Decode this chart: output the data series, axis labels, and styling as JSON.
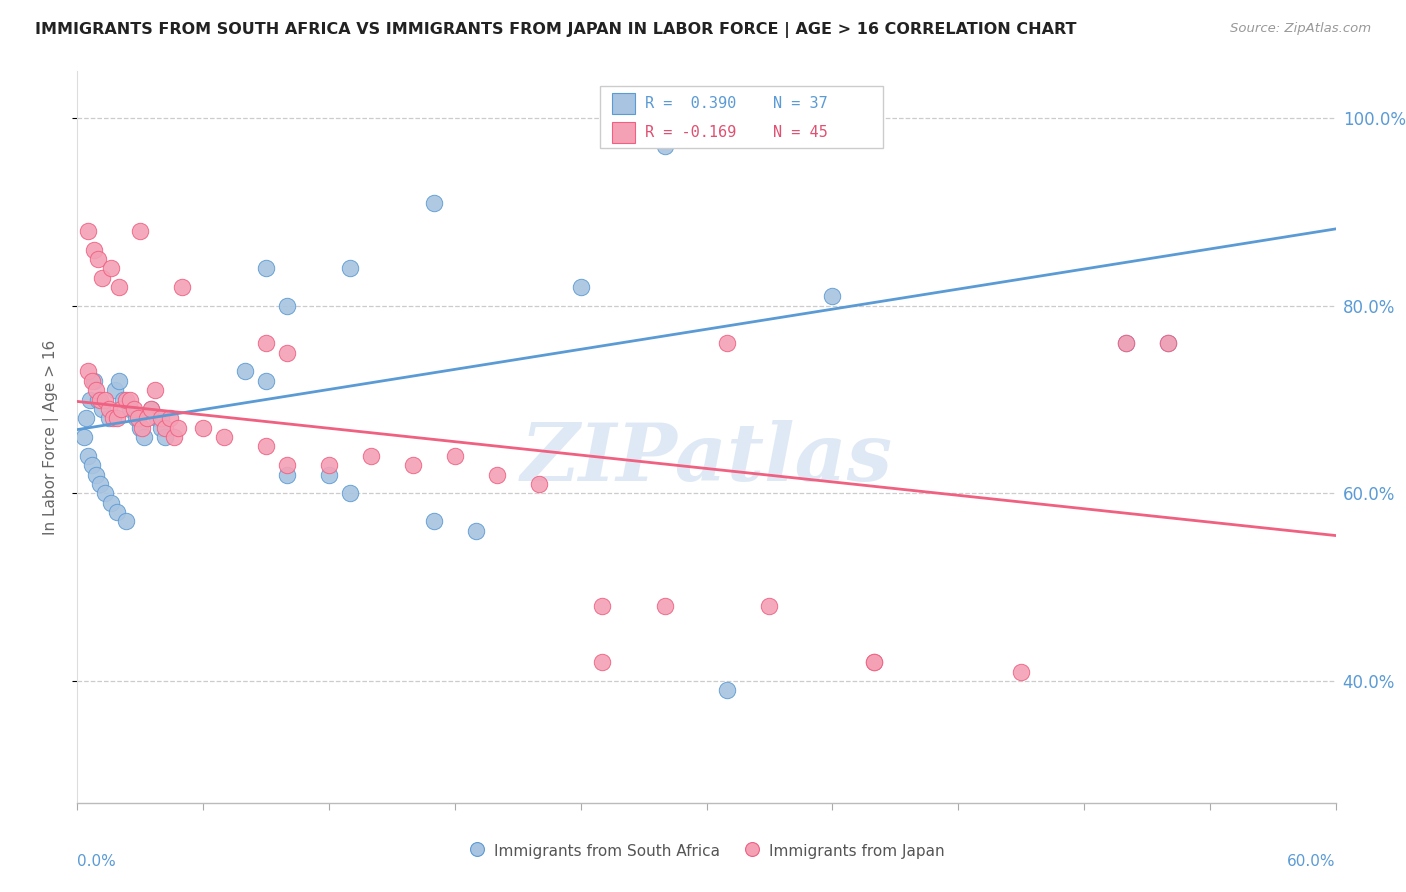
{
  "title": "IMMIGRANTS FROM SOUTH AFRICA VS IMMIGRANTS FROM JAPAN IN LABOR FORCE | AGE > 16 CORRELATION CHART",
  "source": "Source: ZipAtlas.com",
  "ylabel": "In Labor Force | Age > 16",
  "ytick_labels": [
    "100.0%",
    "80.0%",
    "60.0%",
    "40.0%"
  ],
  "ytick_values": [
    1.0,
    0.8,
    0.6,
    0.4
  ],
  "xlim": [
    0.0,
    0.6
  ],
  "ylim": [
    0.27,
    1.05
  ],
  "legend_r1": "R = 0.390",
  "legend_n1": "N = 37",
  "legend_r2": "R = -0.169",
  "legend_n2": "N = 45",
  "color_blue_fill": "#a8c4e0",
  "color_pink_fill": "#f4a0b5",
  "color_blue_edge": "#5b9bd5",
  "color_pink_edge": "#f06080",
  "color_text_blue": "#5b9bd5",
  "color_text_pink": "#e05070",
  "watermark": "ZIPatlas",
  "scatter_blue_x": [
    0.006,
    0.004,
    0.003,
    0.008,
    0.01,
    0.012,
    0.015,
    0.018,
    0.02,
    0.022,
    0.025,
    0.028,
    0.03,
    0.032,
    0.035,
    0.038,
    0.04,
    0.042,
    0.005,
    0.007,
    0.009,
    0.011,
    0.013,
    0.016,
    0.019,
    0.023,
    0.08,
    0.09,
    0.1,
    0.12,
    0.13,
    0.17,
    0.19,
    0.31,
    0.5,
    0.52,
    0.24
  ],
  "scatter_blue_y": [
    0.7,
    0.68,
    0.66,
    0.72,
    0.7,
    0.69,
    0.68,
    0.71,
    0.72,
    0.7,
    0.69,
    0.68,
    0.67,
    0.66,
    0.69,
    0.68,
    0.67,
    0.66,
    0.64,
    0.63,
    0.62,
    0.61,
    0.6,
    0.59,
    0.58,
    0.57,
    0.73,
    0.72,
    0.62,
    0.62,
    0.6,
    0.57,
    0.56,
    0.39,
    0.76,
    0.76,
    0.82
  ],
  "scatter_pink_x": [
    0.005,
    0.007,
    0.009,
    0.011,
    0.013,
    0.015,
    0.017,
    0.019,
    0.021,
    0.023,
    0.025,
    0.027,
    0.029,
    0.031,
    0.033,
    0.035,
    0.037,
    0.04,
    0.042,
    0.044,
    0.046,
    0.048,
    0.005,
    0.008,
    0.01,
    0.012,
    0.016,
    0.02,
    0.06,
    0.07,
    0.09,
    0.1,
    0.12,
    0.14,
    0.16,
    0.18,
    0.2,
    0.22,
    0.25,
    0.28,
    0.31,
    0.38,
    0.45,
    0.5,
    0.52
  ],
  "scatter_pink_y": [
    0.73,
    0.72,
    0.71,
    0.7,
    0.7,
    0.69,
    0.68,
    0.68,
    0.69,
    0.7,
    0.7,
    0.69,
    0.68,
    0.67,
    0.68,
    0.69,
    0.71,
    0.68,
    0.67,
    0.68,
    0.66,
    0.67,
    0.88,
    0.86,
    0.85,
    0.83,
    0.84,
    0.82,
    0.67,
    0.66,
    0.65,
    0.63,
    0.63,
    0.64,
    0.63,
    0.64,
    0.62,
    0.61,
    0.48,
    0.48,
    0.76,
    0.42,
    0.41,
    0.76,
    0.76
  ],
  "blue_line_x": [
    0.0,
    0.6
  ],
  "blue_line_y": [
    0.668,
    0.882
  ],
  "pink_line_x": [
    0.0,
    0.6
  ],
  "pink_line_y": [
    0.698,
    0.555
  ],
  "extra_blue": [
    [
      0.28,
      0.97
    ],
    [
      0.17,
      0.91
    ],
    [
      0.13,
      0.84
    ],
    [
      0.09,
      0.84
    ],
    [
      0.1,
      0.8
    ],
    [
      0.36,
      0.81
    ]
  ],
  "extra_pink": [
    [
      0.03,
      0.88
    ],
    [
      0.05,
      0.82
    ],
    [
      0.09,
      0.76
    ],
    [
      0.1,
      0.75
    ],
    [
      0.25,
      0.42
    ],
    [
      0.38,
      0.42
    ],
    [
      0.33,
      0.48
    ]
  ]
}
